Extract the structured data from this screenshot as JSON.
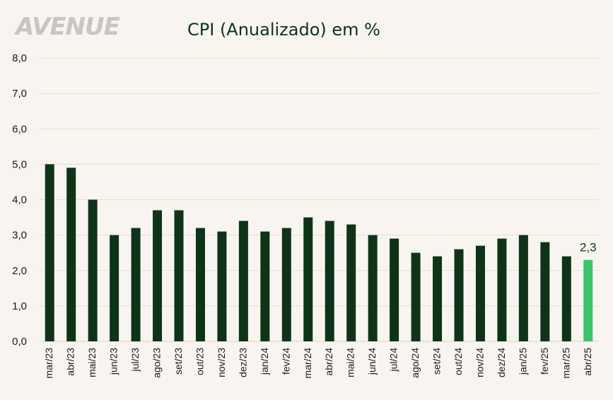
{
  "logo_text": "AVENUE",
  "chart_data": {
    "type": "bar",
    "title": "CPI (Anualizado) em %",
    "xlabel": "",
    "ylabel": "",
    "ylim": [
      0,
      8
    ],
    "yticks": [
      "0,0",
      "1,0",
      "2,0",
      "3,0",
      "4,0",
      "5,0",
      "6,0",
      "7,0",
      "8,0"
    ],
    "grid": true,
    "categories": [
      "mar/23",
      "abr/23",
      "mai/23",
      "jun/23",
      "jul/23",
      "ago/23",
      "set/23",
      "out/23",
      "nov/23",
      "dez/23",
      "jan/24",
      "fev/24",
      "mar/24",
      "abr/24",
      "mai/24",
      "jun/24",
      "jul/24",
      "ago/24",
      "set/24",
      "out/24",
      "nov/24",
      "dez/24",
      "jan/25",
      "fev/25",
      "mar/25",
      "abr/25"
    ],
    "values": [
      5.0,
      4.9,
      4.0,
      3.0,
      3.2,
      3.7,
      3.7,
      3.2,
      3.1,
      3.4,
      3.1,
      3.2,
      3.5,
      3.4,
      3.3,
      3.0,
      2.9,
      2.5,
      2.4,
      2.6,
      2.7,
      2.9,
      3.0,
      2.8,
      2.4,
      2.3
    ],
    "highlight_index": 25,
    "data_labels": [
      {
        "index": 25,
        "text": "2,3"
      }
    ],
    "colors": {
      "bar": "#0f3318",
      "highlight": "#3cc46a",
      "grid": "#e6ddd2",
      "axis": "#d9cfc3"
    }
  }
}
